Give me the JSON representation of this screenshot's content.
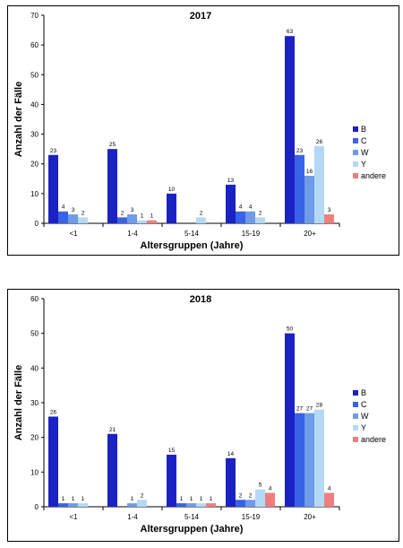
{
  "chart_data": [
    {
      "type": "bar",
      "title": "2017",
      "xlabel": "Altersgruppen (Jahre)",
      "ylabel": "Anzahl der Fälle",
      "ylim": [
        0,
        70
      ],
      "yticks": [
        0,
        10,
        20,
        30,
        40,
        50,
        60,
        70
      ],
      "legend_position": "right",
      "categories": [
        "<1",
        "1-4",
        "5-14",
        "15-19",
        "20+"
      ],
      "series": [
        {
          "name": "B",
          "color": "#1a22c4",
          "values": [
            23,
            25,
            10,
            13,
            63
          ]
        },
        {
          "name": "C",
          "color": "#3a62e8",
          "values": [
            4,
            2,
            null,
            4,
            23
          ]
        },
        {
          "name": "W",
          "color": "#6f9be8",
          "values": [
            3,
            3,
            null,
            4,
            16
          ]
        },
        {
          "name": "Y",
          "color": "#b3d9f5",
          "values": [
            2,
            1,
            2,
            2,
            26
          ]
        },
        {
          "name": "andere",
          "color": "#ee7e7e",
          "values": [
            null,
            1,
            null,
            null,
            3
          ]
        }
      ]
    },
    {
      "type": "bar",
      "title": "2018",
      "xlabel": "Altersgruppen (Jahre)",
      "ylabel": "Anzahl der Fälle",
      "ylim": [
        0,
        60
      ],
      "yticks": [
        0,
        10,
        20,
        30,
        40,
        50,
        60
      ],
      "legend_position": "right",
      "categories": [
        "<1",
        "1-4",
        "5-14",
        "15-19",
        "20+"
      ],
      "series": [
        {
          "name": "B",
          "color": "#1a22c4",
          "values": [
            26,
            21,
            15,
            14,
            50
          ]
        },
        {
          "name": "C",
          "color": "#3a62e8",
          "values": [
            1,
            null,
            1,
            2,
            27
          ]
        },
        {
          "name": "W",
          "color": "#6f9be8",
          "values": [
            1,
            1,
            1,
            2,
            27
          ]
        },
        {
          "name": "Y",
          "color": "#b3d9f5",
          "values": [
            1,
            2,
            1,
            5,
            28
          ]
        },
        {
          "name": "andere",
          "color": "#ee7e7e",
          "values": [
            null,
            null,
            1,
            4,
            4
          ]
        }
      ]
    }
  ]
}
